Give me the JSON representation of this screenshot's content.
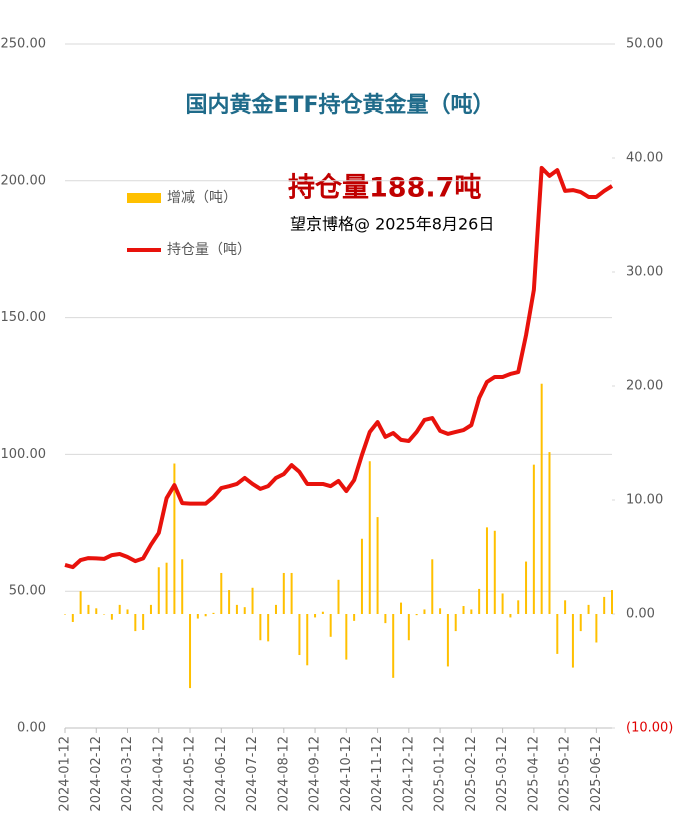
{
  "chart_data": {
    "type": "bar-line",
    "title": "国内黄金ETF持仓黄金量（吨）",
    "annotations": [
      "持仓量188.7吨",
      "望京博格@ 2025年8月26日"
    ],
    "categories": [
      "2024-01-12",
      null,
      null,
      null,
      "2024-02-12",
      null,
      null,
      null,
      "2024-03-12",
      null,
      null,
      null,
      "2024-04-12",
      null,
      null,
      null,
      "2024-05-12",
      null,
      null,
      null,
      "2024-06-12",
      null,
      null,
      null,
      "2024-07-12",
      null,
      null,
      null,
      "2024-08-12",
      null,
      null,
      null,
      "2024-09-12",
      null,
      null,
      null,
      "2024-10-12",
      null,
      null,
      null,
      "2024-11-12",
      null,
      null,
      null,
      "2024-12-12",
      null,
      null,
      null,
      "2025-01-12",
      null,
      null,
      null,
      "2025-02-12",
      null,
      null,
      null,
      "2025-03-12",
      null,
      null,
      null,
      "2025-04-12",
      null,
      null,
      null,
      "2025-05-12",
      null,
      null,
      null,
      "2025-06-12",
      null,
      null
    ],
    "series": [
      {
        "name": "增减（吨）",
        "type": "bar",
        "axis": "y2",
        "color": "#ffc000",
        "values": [
          0,
          -0.7,
          2,
          0.8,
          0.5,
          0,
          -0.5,
          0.8,
          0.4,
          -1.5,
          -1.4,
          0.8,
          4.1,
          4.5,
          13.2,
          4.8,
          -6.5,
          -0.4,
          -0.2,
          0.1,
          3.6,
          2.1,
          0.8,
          0.6,
          2.3,
          -2.3,
          -2.4,
          0.8,
          3.6,
          3.6,
          -3.6,
          -4.5,
          -0.3,
          0.2,
          -2,
          3,
          -4,
          -0.6,
          6.6,
          13.4,
          8.5,
          -0.8,
          -5.6,
          1,
          -2.3,
          -0.1,
          0.4,
          4.8,
          0.5,
          -4.6,
          -1.5,
          0.7,
          0.4,
          2.2,
          7.6,
          7.3,
          1.8,
          -0.3,
          1.2,
          4.6,
          13.1,
          20.2,
          14.2,
          -3.5,
          1.2,
          -4.7,
          -1.5,
          0.8,
          -2.5,
          1.5,
          2.1
        ]
      },
      {
        "name": "持仓量（吨）",
        "type": "line",
        "axis": "y",
        "color": "#e8120c",
        "values": [
          59.6,
          58.8,
          61.4,
          62.1,
          62,
          61.8,
          63.2,
          63.6,
          62.5,
          61,
          62,
          67,
          71.3,
          84,
          88.8,
          82.2,
          82,
          82,
          82,
          84.4,
          87.7,
          88.4,
          89.2,
          91.4,
          89.2,
          87.4,
          88.4,
          91.4,
          92.8,
          96.1,
          93.6,
          89.2,
          89.2,
          89.2,
          88.4,
          90.3,
          86.6,
          90.6,
          99.8,
          108.2,
          111.8,
          106.4,
          107.8,
          105.3,
          104.9,
          108.2,
          112.6,
          113.3,
          108.6,
          107.5,
          108.2,
          108.9,
          110.7,
          120.6,
          126.5,
          128.3,
          128.3,
          129.4,
          130.1,
          143.6,
          160.1,
          204.7,
          201.8,
          203.9,
          196.3,
          196.6,
          195.9,
          194.1,
          194.1,
          196.3,
          198.1
        ]
      }
    ],
    "ylim": [
      0,
      250
    ],
    "yticks": [
      {
        "value": 0,
        "label": "0.00"
      },
      {
        "value": 50,
        "label": "50.00"
      },
      {
        "value": 100,
        "label": "100.00"
      },
      {
        "value": 150,
        "label": "150.00"
      },
      {
        "value": 200,
        "label": "200.00"
      },
      {
        "value": 250,
        "label": "250.00"
      }
    ],
    "y2lim": [
      -10,
      50
    ],
    "y2ticks": [
      {
        "value": -10,
        "label": "(10.00)"
      },
      {
        "value": 0,
        "label": "0.00"
      },
      {
        "value": 10,
        "label": "10.00"
      },
      {
        "value": 20,
        "label": "20.00"
      },
      {
        "value": 30,
        "label": "30.00"
      },
      {
        "value": 40,
        "label": "40.00"
      },
      {
        "value": 50,
        "label": "50.00"
      }
    ],
    "grid": true,
    "legend": "upper left"
  }
}
